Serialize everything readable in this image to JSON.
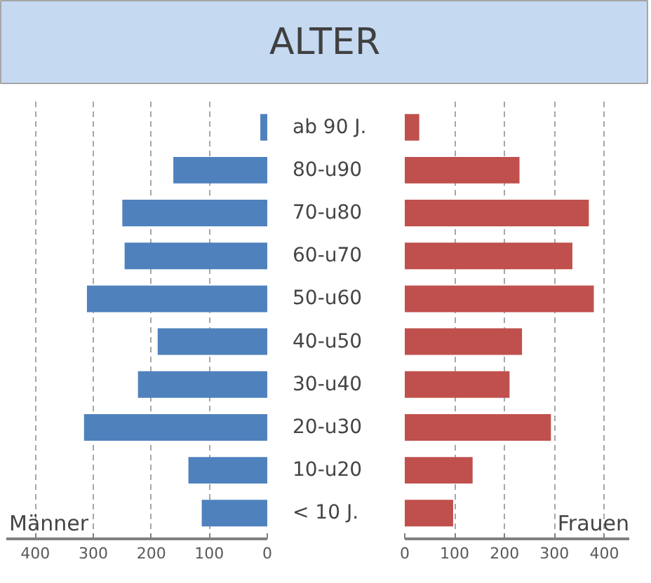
{
  "chart_data": [
    {
      "type": "bar",
      "orientation": "horizontal",
      "title": "ALTER",
      "categories": [
        "ab 90 J.",
        "80-u90",
        "70-u80",
        "60-u70",
        "50-u60",
        "40-u50",
        "30-u40",
        "20-u30",
        "10-u20",
        "< 10 J."
      ],
      "series": [
        {
          "color": "#4f81bd",
          "values": [
            12,
            162,
            250,
            246,
            311,
            189,
            223,
            316,
            136,
            113
          ]
        }
      ],
      "xlim": [
        450,
        0
      ],
      "xticks": [
        400,
        300,
        200,
        100,
        0
      ],
      "grid": "x",
      "annotations": [
        "Männer"
      ]
    },
    {
      "type": "bar",
      "orientation": "horizontal",
      "series": [
        {
          "color": "#c0504d",
          "values": [
            29,
            230,
            369,
            336,
            379,
            235,
            210,
            293,
            136,
            97
          ]
        }
      ],
      "xlim": [
        0,
        450
      ],
      "xticks": [
        0,
        100,
        200,
        300,
        400
      ],
      "grid": "x",
      "tick_labels": "x",
      "annotations": [
        "Frauen"
      ]
    }
  ]
}
